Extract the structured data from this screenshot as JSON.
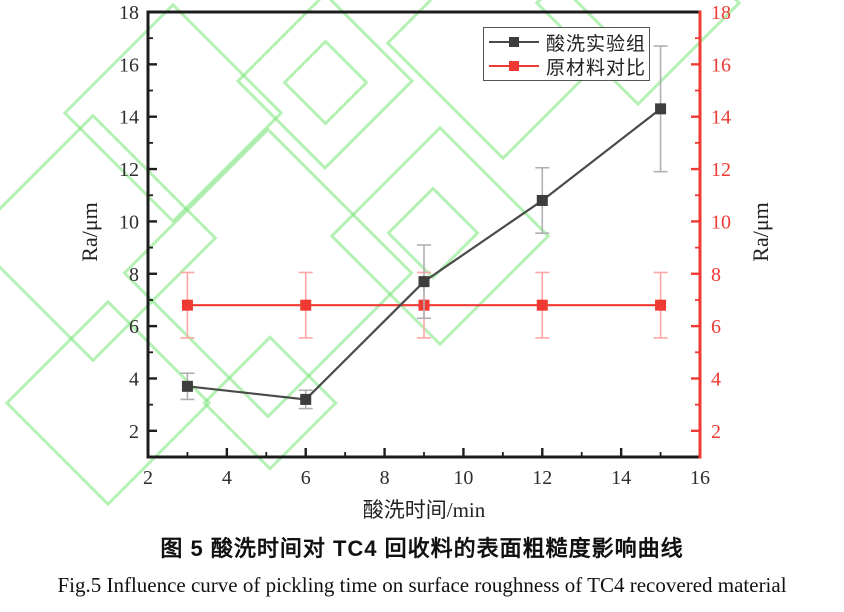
{
  "figure": {
    "caption_zh": "图 5 酸洗时间对 TC4 回收料的表面粗糙度影响曲线",
    "caption_en": "Fig.5 Influence curve of pickling time on surface roughness of TC4 recovered material"
  },
  "colors": {
    "frame_black": "#1c1c1c",
    "axis_red": "#ee3a33",
    "tick_label": "#2e2e2e",
    "series_black_marker": "#3d3d3d",
    "series_black_line": "#4a4a4a",
    "series_black_error": "#b0b0b0",
    "series_red": "#ee3a33",
    "series_red_error": "#ffa6a6",
    "watermark_green": "#78e478"
  },
  "chart_data": {
    "type": "line",
    "title": "",
    "xlabel": "酸洗时间/min",
    "ylabel_left": "Ra/μm",
    "ylabel_right": "Ra/μm",
    "xlim": [
      2,
      16
    ],
    "ylim": [
      1,
      18
    ],
    "xticks": [
      2,
      4,
      6,
      8,
      10,
      12,
      14,
      16
    ],
    "yticks": [
      2,
      4,
      6,
      8,
      10,
      12,
      14,
      16,
      18
    ],
    "minor_tick_step": 1,
    "grid": false,
    "legend_position": "top-right",
    "x": [
      3,
      6,
      9,
      12,
      15
    ],
    "series": [
      {
        "name": "酸洗实验组",
        "marker": "square",
        "color": "#3d3d3d",
        "line_color": "#4a4a4a",
        "error_color": "#b0b0b0",
        "values": [
          3.7,
          3.2,
          7.7,
          10.8,
          14.3
        ],
        "errors": [
          0.5,
          0.35,
          1.4,
          1.25,
          2.4
        ]
      },
      {
        "name": "原材料对比",
        "marker": "square",
        "color": "#ee3a33",
        "line_color": "#ee3a33",
        "error_color": "#ffa6a6",
        "values": [
          6.8,
          6.8,
          6.8,
          6.8,
          6.8
        ],
        "errors": [
          1.25,
          1.25,
          1.25,
          1.25,
          1.25
        ]
      }
    ]
  }
}
